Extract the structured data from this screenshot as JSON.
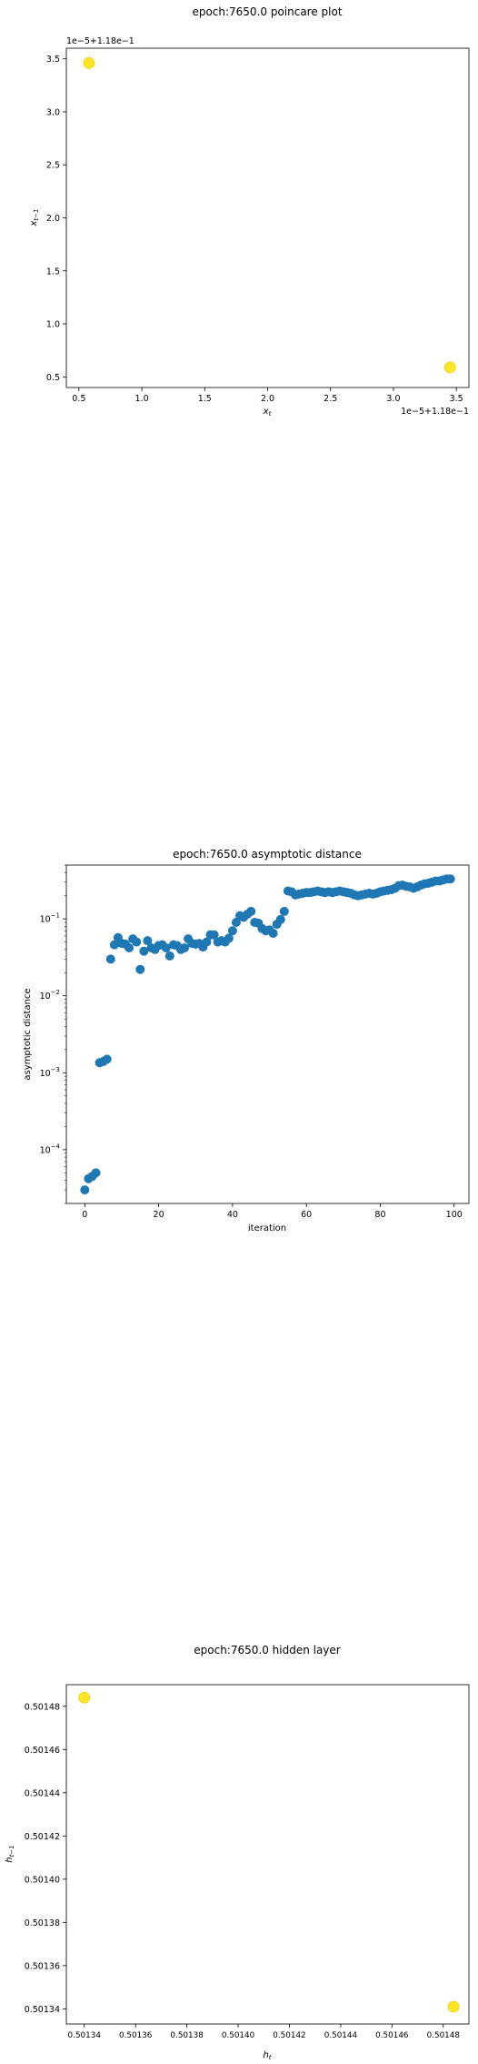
{
  "chart_data": [
    {
      "type": "scatter",
      "title": "epoch:7650.0 poincare plot",
      "xlabel": "x_t",
      "ylabel": "x_{t−1}",
      "x_offset_label": "1e−5+1.18e−1",
      "y_offset_label": "1e−5+1.18e−1",
      "x_ticks": [
        "0.5",
        "1.0",
        "1.5",
        "2.0",
        "2.5",
        "3.0",
        "3.5"
      ],
      "y_ticks": [
        "0.5",
        "1.0",
        "1.5",
        "2.0",
        "2.5",
        "3.0",
        "3.5"
      ],
      "xlim": [
        0.4,
        3.6
      ],
      "ylim": [
        0.4,
        3.6
      ],
      "point_color": "#fde725",
      "points": [
        {
          "x": 0.58,
          "y": 3.46
        },
        {
          "x": 3.45,
          "y": 0.59
        }
      ]
    },
    {
      "type": "scatter",
      "title": "epoch:7650.0 asymptotic distance",
      "xlabel": "iteration",
      "ylabel": "asymptotic distance",
      "yscale": "log",
      "x_ticks": [
        "0",
        "20",
        "40",
        "60",
        "80",
        "100"
      ],
      "y_ticks": [
        "10^-4",
        "10^-3",
        "10^-2",
        "10^-1"
      ],
      "xlim": [
        -5,
        104
      ],
      "ylim": [
        2e-05,
        0.5
      ],
      "point_color": "#1f77b4",
      "x": [
        0,
        1,
        2,
        3,
        4,
        5,
        6,
        7,
        8,
        9,
        10,
        11,
        12,
        13,
        14,
        15,
        16,
        17,
        18,
        19,
        20,
        21,
        22,
        23,
        24,
        25,
        26,
        27,
        28,
        29,
        30,
        31,
        32,
        33,
        34,
        35,
        36,
        37,
        38,
        39,
        40,
        41,
        42,
        43,
        44,
        45,
        46,
        47,
        48,
        49,
        50,
        51,
        52,
        53,
        54,
        55,
        56,
        57,
        58,
        59,
        60,
        61,
        62,
        63,
        64,
        65,
        66,
        67,
        68,
        69,
        70,
        71,
        72,
        73,
        74,
        75,
        76,
        77,
        78,
        79,
        80,
        81,
        82,
        83,
        84,
        85,
        86,
        87,
        88,
        89,
        90,
        91,
        92,
        93,
        94,
        95,
        96,
        97,
        98,
        99
      ],
      "y": [
        3e-05,
        4.2e-05,
        4.5e-05,
        5e-05,
        0.00135,
        0.0014,
        0.0015,
        0.03,
        0.046,
        0.057,
        0.048,
        0.047,
        0.042,
        0.055,
        0.05,
        0.022,
        0.038,
        0.052,
        0.042,
        0.04,
        0.045,
        0.046,
        0.042,
        0.033,
        0.046,
        0.045,
        0.04,
        0.042,
        0.055,
        0.048,
        0.047,
        0.048,
        0.043,
        0.05,
        0.062,
        0.062,
        0.05,
        0.052,
        0.05,
        0.056,
        0.07,
        0.09,
        0.11,
        0.105,
        0.115,
        0.125,
        0.09,
        0.088,
        0.075,
        0.07,
        0.072,
        0.065,
        0.085,
        0.098,
        0.125,
        0.23,
        0.225,
        0.205,
        0.21,
        0.215,
        0.22,
        0.22,
        0.225,
        0.23,
        0.225,
        0.22,
        0.225,
        0.22,
        0.225,
        0.23,
        0.225,
        0.22,
        0.215,
        0.205,
        0.2,
        0.205,
        0.21,
        0.215,
        0.21,
        0.215,
        0.225,
        0.23,
        0.235,
        0.24,
        0.25,
        0.27,
        0.275,
        0.265,
        0.26,
        0.25,
        0.26,
        0.275,
        0.285,
        0.29,
        0.3,
        0.31,
        0.31,
        0.32,
        0.33,
        0.33
      ]
    },
    {
      "type": "scatter",
      "title": "epoch:7650.0 hidden layer",
      "xlabel": "h_t",
      "ylabel": "h_{t−1}",
      "x_ticks": [
        "0.50134",
        "0.50136",
        "0.50138",
        "0.50140",
        "0.50142",
        "0.50144",
        "0.50146",
        "0.50148"
      ],
      "y_ticks": [
        "0.50134",
        "0.50136",
        "0.50138",
        "0.50140",
        "0.50142",
        "0.50144",
        "0.50146",
        "0.50148"
      ],
      "xlim": [
        0.501333,
        0.50149
      ],
      "ylim": [
        0.501333,
        0.50149
      ],
      "point_color": "#fde725",
      "points": [
        {
          "x": 0.50134,
          "y": 0.501484
        },
        {
          "x": 0.501484,
          "y": 0.501341
        }
      ]
    }
  ]
}
